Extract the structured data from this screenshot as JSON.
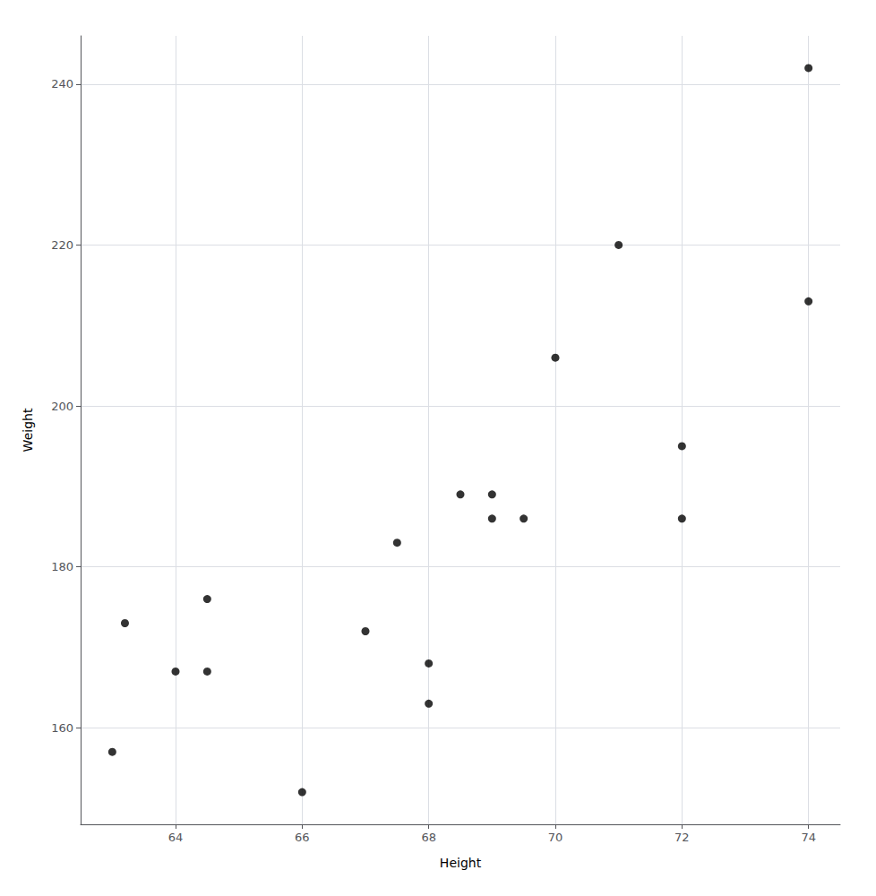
{
  "chart_data": {
    "type": "scatter",
    "x": [
      63.0,
      63.2,
      64.0,
      64.5,
      64.5,
      66.0,
      67.0,
      67.5,
      68.0,
      68.0,
      68.5,
      69.0,
      69.0,
      69.5,
      70.0,
      71.0,
      72.0,
      72.0,
      74.0,
      74.0
    ],
    "values": [
      157,
      173,
      167,
      167,
      176,
      152,
      172,
      183,
      168,
      163,
      189,
      189,
      186,
      186,
      206,
      220,
      186,
      195,
      242,
      213
    ],
    "color": "#000000",
    "xlabel": "Height",
    "ylabel": "Weight",
    "xlim": [
      62.5,
      74.5
    ],
    "ylim": [
      148,
      246
    ],
    "xticks": [
      64,
      66,
      68,
      70,
      72,
      74
    ],
    "yticks": [
      160,
      180,
      200,
      220,
      240
    ],
    "grid": true
  }
}
